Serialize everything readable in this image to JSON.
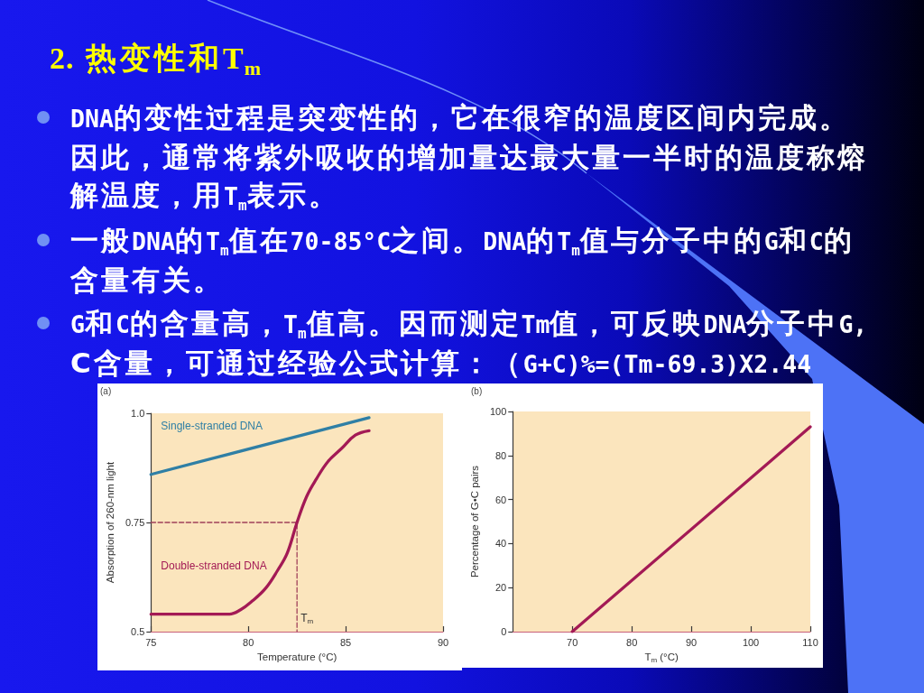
{
  "chart_data": [
    {
      "type": "other",
      "title": "2. 热变性和T$_{m}$",
      "annotations": [
        "DNA的变性过程是突变性的，它在很窄的温度区间内完成。因此，通常将紫外吸收的增加量达最大量一半时的温度称熔解温度，用T$_{m}$表示。",
        "一般DNA的T$_{m}$值在70-85°C之间。DNA的T$_{m}$值与分子中的G和C的含量有关。",
        "G和C的含量高，T$_{m}$值高。因而测定Tm值，可反映DNA分子中G,C含量，可通过经验公式计算：（G+C)%=(Tm-69.3)X2.44"
      ]
    },
    {
      "type": "line",
      "title": "(a)",
      "xlabel": "Temperature (°C)",
      "ylabel": "Absorption of 260-nm light",
      "xlim": [
        75,
        90
      ],
      "xticks": [
        75,
        80,
        85,
        90
      ],
      "ylim": [
        0.5,
        1
      ],
      "yticks": [
        0.5,
        0.75,
        {
          "value": 1,
          "label": "1.0"
        }
      ],
      "series": [
        {
          "color": "#a0405a",
          "line_style": "dashed",
          "x": [
            75,
            82.5,
            82.5
          ],
          "values": [
            0.75,
            0.75,
            0.5
          ]
        },
        {
          "name": "Single-stranded DNA",
          "color": "#2f7fa5",
          "x": [
            75,
            86.2
          ],
          "values": [
            0.86,
            0.99
          ]
        },
        {
          "name": "Double-stranded DNA",
          "color": "#a31a55",
          "x": [
            75,
            79,
            79.6,
            80.2,
            80.9,
            81.5,
            82,
            82.5,
            83,
            83.5,
            84.1,
            84.8,
            85.5,
            86.2
          ],
          "values": [
            0.54,
            0.54,
            0.55,
            0.57,
            0.6,
            0.64,
            0.68,
            0.75,
            0.81,
            0.85,
            0.89,
            0.92,
            0.95,
            0.96
          ]
        }
      ],
      "annotations": [
        {
          "text": "T$_{m}$",
          "x": 82.5,
          "y": 0.53
        }
      ]
    },
    {
      "type": "line",
      "title": "(b)",
      "xlabel": "T$_{m}$ (°C)",
      "ylabel": "Percentage of G•C pairs",
      "xlim": [
        60,
        110
      ],
      "xticks": [
        70,
        80,
        90,
        100,
        110
      ],
      "ylim": [
        0,
        100
      ],
      "yticks": [
        0,
        20,
        40,
        60,
        80,
        100
      ],
      "series": [
        {
          "color": "#a31a55",
          "x": [
            70,
            110
          ],
          "values": [
            0,
            93
          ]
        }
      ]
    }
  ]
}
